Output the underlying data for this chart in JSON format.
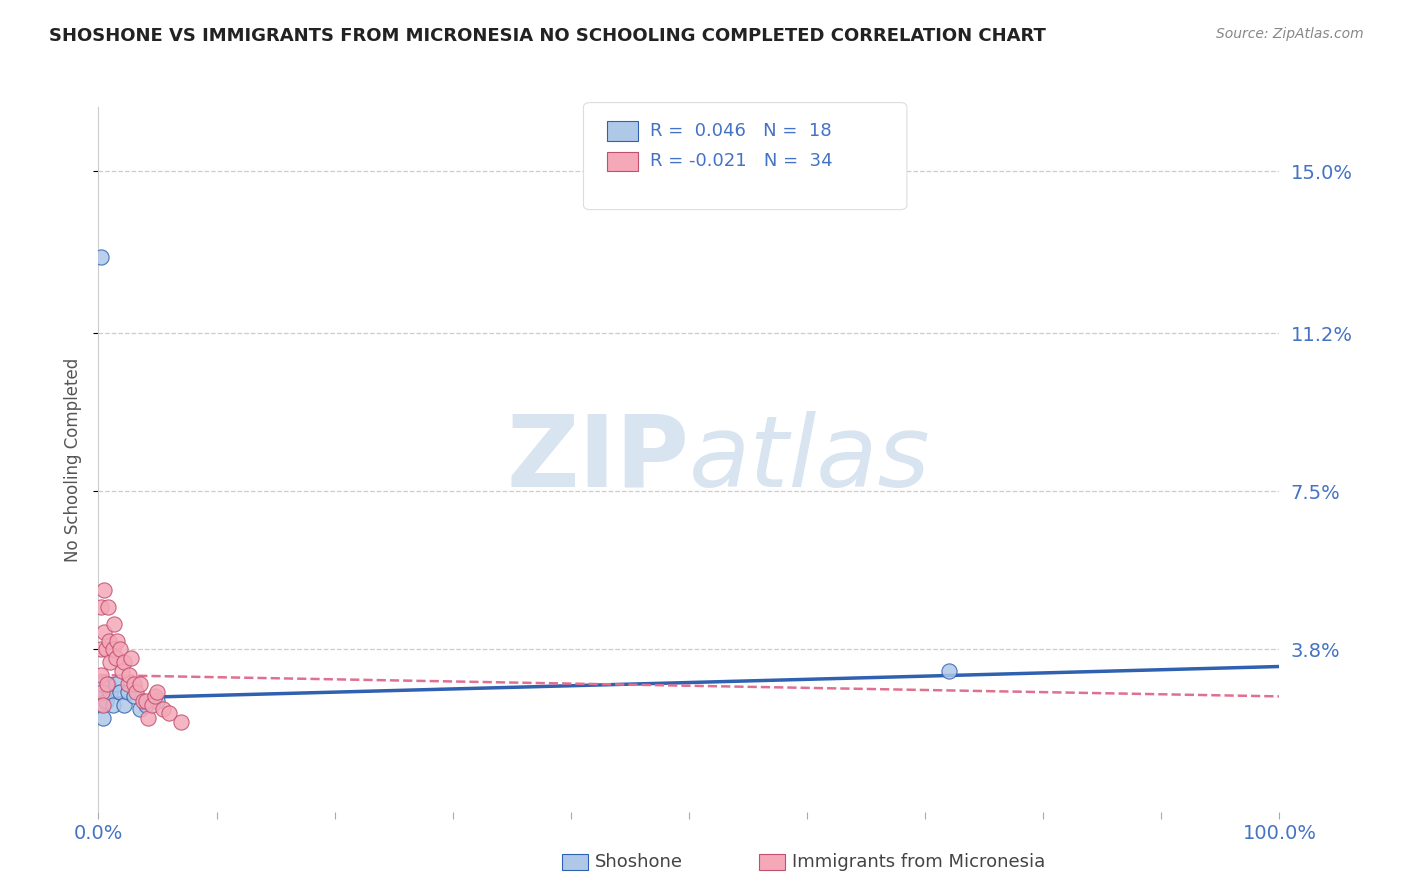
{
  "title": "SHOSHONE VS IMMIGRANTS FROM MICRONESIA NO SCHOOLING COMPLETED CORRELATION CHART",
  "source_text": "Source: ZipAtlas.com",
  "ylabel": "No Schooling Completed",
  "xlabel": "",
  "legend_label1": "Shoshone",
  "legend_label2": "Immigrants from Micronesia",
  "r1": 0.046,
  "n1": 18,
  "r2": -0.021,
  "n2": 34,
  "color1": "#aec8e8",
  "color2": "#f4a8b8",
  "trendline_color1": "#3060b0",
  "trendline_color2": "#e07090",
  "text_color": "#4472c4",
  "title_color": "#222222",
  "watermark_text": "ZIPatlas",
  "watermark_color": "#d8e4f0",
  "ytick_vals": [
    0.038,
    0.075,
    0.112,
    0.15
  ],
  "ytick_labels": [
    "3.8%",
    "7.5%",
    "11.2%",
    "15.0%"
  ],
  "xlim": [
    0.0,
    1.0
  ],
  "ylim": [
    0.0,
    0.165
  ],
  "background_color": "#ffffff",
  "shoshone_x": [
    0.002,
    0.003,
    0.004,
    0.005,
    0.006,
    0.008,
    0.01,
    0.012,
    0.015,
    0.018,
    0.022,
    0.025,
    0.03,
    0.035,
    0.04,
    0.05,
    0.72,
    0.002
  ],
  "shoshone_y": [
    0.13,
    0.025,
    0.022,
    0.028,
    0.026,
    0.03,
    0.028,
    0.025,
    0.03,
    0.028,
    0.025,
    0.028,
    0.027,
    0.024,
    0.025,
    0.026,
    0.033,
    0.03
  ],
  "micronesia_x": [
    0.002,
    0.002,
    0.002,
    0.003,
    0.004,
    0.005,
    0.005,
    0.006,
    0.007,
    0.008,
    0.009,
    0.01,
    0.012,
    0.013,
    0.015,
    0.016,
    0.018,
    0.02,
    0.022,
    0.025,
    0.026,
    0.028,
    0.03,
    0.032,
    0.035,
    0.038,
    0.04,
    0.042,
    0.045,
    0.048,
    0.05,
    0.055,
    0.06,
    0.07
  ],
  "micronesia_y": [
    0.048,
    0.038,
    0.032,
    0.028,
    0.025,
    0.052,
    0.042,
    0.038,
    0.03,
    0.048,
    0.04,
    0.035,
    0.038,
    0.044,
    0.036,
    0.04,
    0.038,
    0.033,
    0.035,
    0.03,
    0.032,
    0.036,
    0.03,
    0.028,
    0.03,
    0.026,
    0.026,
    0.022,
    0.025,
    0.027,
    0.028,
    0.024,
    0.023,
    0.021
  ],
  "trend1_x0": 0.0,
  "trend1_y0": 0.0265,
  "trend1_x1": 1.0,
  "trend1_y1": 0.034,
  "trend2_x0": 0.0,
  "trend2_y0": 0.032,
  "trend2_x1": 1.0,
  "trend2_y1": 0.027
}
